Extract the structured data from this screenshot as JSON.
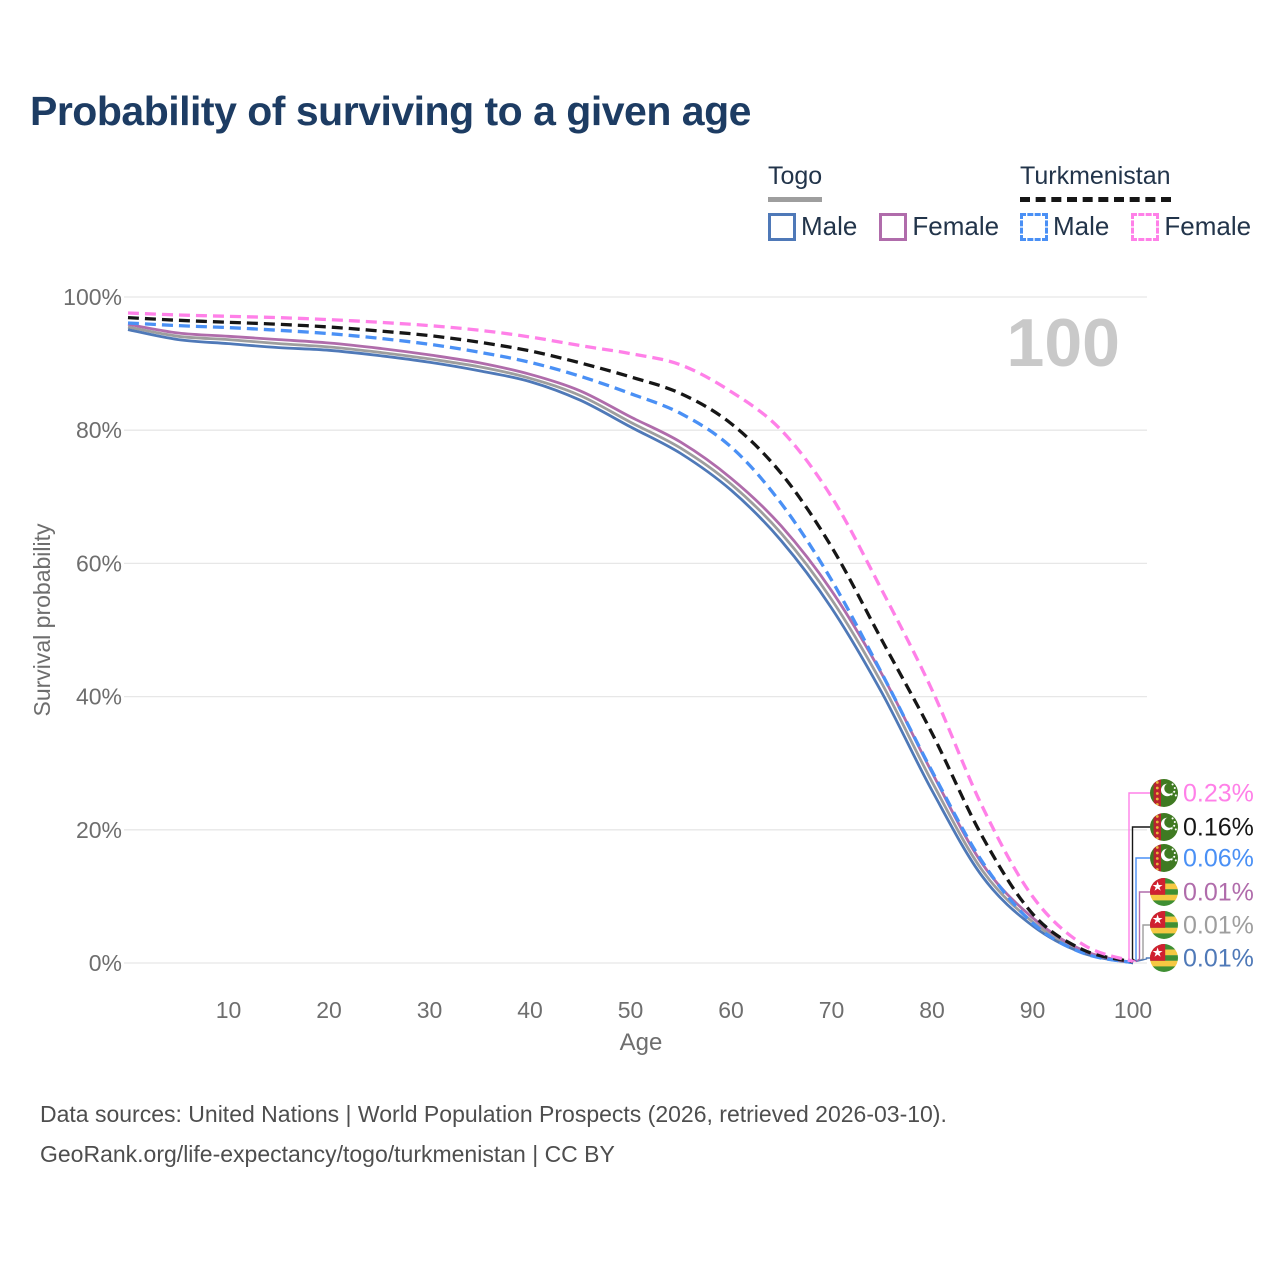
{
  "title": "Probability of surviving to a given age",
  "hover_age_label": "100",
  "legend": {
    "groups": [
      {
        "label": "Togo",
        "series_color": "#9e9e9e",
        "line_style": "solid",
        "items": [
          {
            "label": "Male",
            "color": "#4f79b8"
          },
          {
            "label": "Female",
            "color": "#b06cab"
          }
        ]
      },
      {
        "label": "Turkmenistan",
        "series_color": "#161616",
        "line_style": "dashed",
        "items": [
          {
            "label": "Male",
            "color": "#4a90f5"
          },
          {
            "label": "Female",
            "color": "#ff80e8"
          }
        ]
      }
    ]
  },
  "chart_data": {
    "type": "line",
    "title": "Probability of surviving to a given age",
    "xlabel": "Age",
    "ylabel": "Survival probability",
    "xlim": [
      0,
      100
    ],
    "ylim": [
      0,
      100
    ],
    "grid": "horizontal-only",
    "legend_position": "top-right",
    "x_ticks": [
      10,
      20,
      30,
      40,
      50,
      60,
      70,
      80,
      90,
      100
    ],
    "y_ticks": [
      0,
      20,
      40,
      60,
      80,
      100
    ],
    "y_tick_labels": [
      "0%",
      "20%",
      "40%",
      "60%",
      "80%",
      "100%"
    ],
    "x": [
      0,
      5,
      10,
      15,
      20,
      25,
      30,
      35,
      40,
      45,
      50,
      55,
      60,
      65,
      70,
      75,
      80,
      85,
      90,
      95,
      100
    ],
    "series": [
      {
        "name": "Togo Both sexes",
        "country": "Togo",
        "sex": "Both sexes",
        "color": "#9e9e9e",
        "dashed": false,
        "flag_icon": "togo-flag-icon",
        "end_label": "0.01%",
        "label_row": 4,
        "values": [
          95.5,
          94.1,
          93.6,
          93.0,
          92.5,
          91.7,
          90.7,
          89.5,
          87.8,
          85.2,
          81.2,
          77.3,
          71.9,
          64.5,
          54.6,
          42.0,
          27.2,
          13.9,
          6.2,
          1.7,
          0.01
        ]
      },
      {
        "name": "Togo Male",
        "country": "Togo",
        "sex": "Male",
        "color": "#4f79b8",
        "dashed": false,
        "flag_icon": "togo-flag-icon",
        "end_label": "0.01%",
        "label_row": 5,
        "values": [
          95.1,
          93.6,
          93.0,
          92.4,
          92.0,
          91.2,
          90.2,
          88.9,
          87.3,
          84.5,
          80.5,
          76.5,
          71.0,
          63.4,
          53.3,
          40.6,
          25.9,
          13.0,
          5.6,
          1.5,
          0.01
        ]
      },
      {
        "name": "Togo Female",
        "country": "Togo",
        "sex": "Female",
        "color": "#b06cab",
        "dashed": false,
        "flag_icon": "togo-flag-icon",
        "end_label": "0.01%",
        "label_row": 3,
        "values": [
          95.9,
          94.6,
          94.1,
          93.6,
          93.1,
          92.3,
          91.3,
          90.1,
          88.4,
          85.9,
          82.0,
          78.2,
          72.8,
          65.6,
          55.9,
          43.4,
          28.6,
          14.9,
          6.8,
          1.9,
          0.01
        ]
      },
      {
        "name": "Turkmenistan Male",
        "country": "Turkmenistan",
        "sex": "Male",
        "color": "#4a90f5",
        "dashed": true,
        "flag_icon": "turkmenistan-flag-icon",
        "end_label": "0.06%",
        "label_row": 2,
        "values": [
          96.1,
          95.7,
          95.4,
          95.0,
          94.5,
          93.8,
          92.9,
          91.7,
          90.2,
          88.1,
          85.5,
          82.5,
          77.5,
          69.0,
          57.5,
          43.5,
          28.8,
          15.2,
          6.0,
          1.5,
          0.06
        ]
      },
      {
        "name": "Turkmenistan Both sexes",
        "country": "Turkmenistan",
        "sex": "Both sexes",
        "color": "#161616",
        "dashed": true,
        "flag_icon": "turkmenistan-flag-icon",
        "end_label": "0.16%",
        "label_row": 1,
        "values": [
          96.9,
          96.5,
          96.2,
          95.9,
          95.5,
          94.9,
          94.2,
          93.2,
          91.9,
          90.1,
          88.0,
          85.5,
          81.0,
          73.5,
          62.5,
          48.5,
          34.5,
          19.0,
          7.4,
          2.0,
          0.16
        ]
      },
      {
        "name": "Turkmenistan Female",
        "country": "Turkmenistan",
        "sex": "Female",
        "color": "#ff80e8",
        "dashed": true,
        "flag_icon": "turkmenistan-flag-icon",
        "end_label": "0.23%",
        "label_row": 0,
        "values": [
          97.6,
          97.3,
          97.1,
          96.9,
          96.6,
          96.2,
          95.7,
          95.0,
          94.0,
          92.7,
          91.5,
          89.8,
          85.8,
          80.0,
          70.0,
          56.0,
          41.0,
          23.5,
          10.0,
          2.8,
          0.23
        ]
      }
    ]
  },
  "footer": {
    "line1": "Data sources: United Nations | World Population Prospects (2026, retrieved 2026-03-10).",
    "line2": "GeoRank.org/life-expectancy/togo/turkmenistan | CC BY"
  }
}
